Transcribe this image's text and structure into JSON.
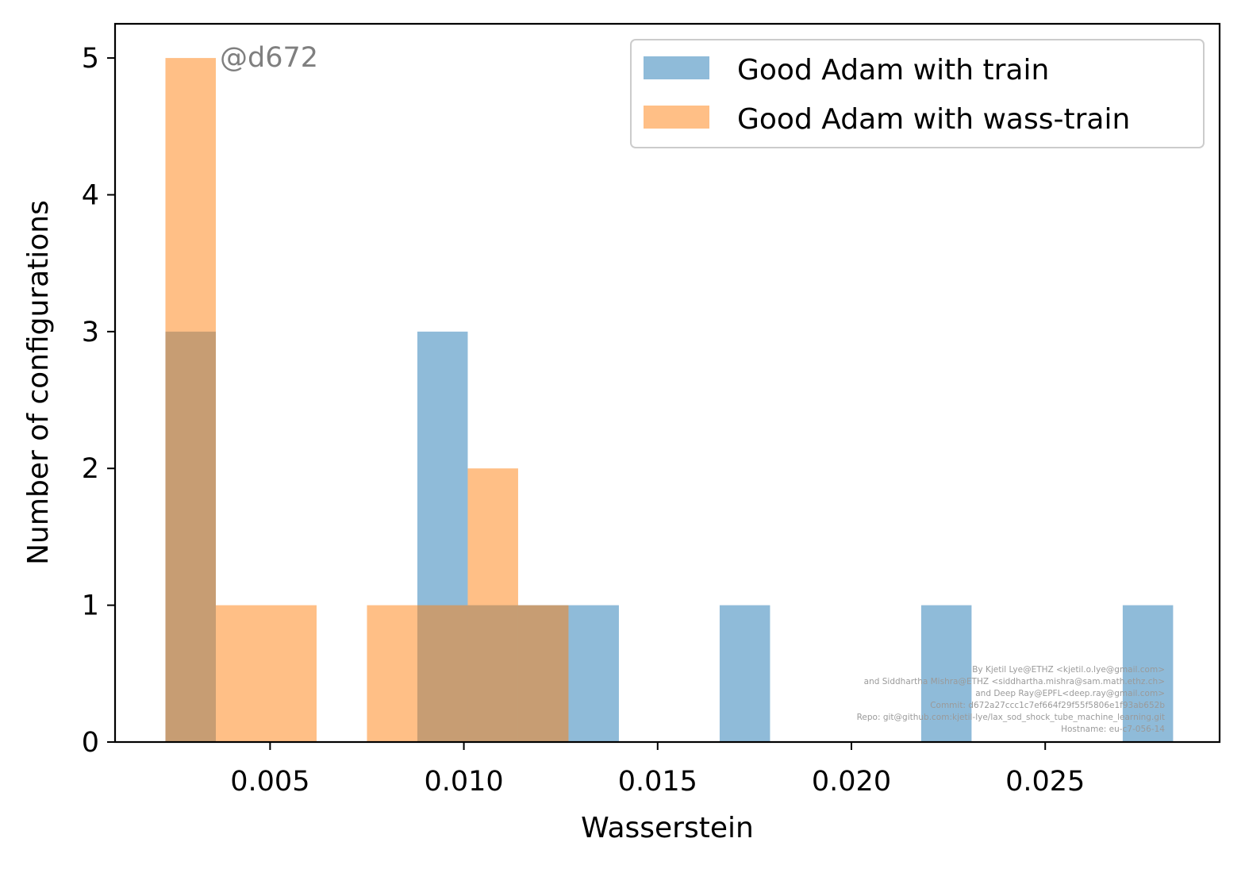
{
  "chart_data": {
    "type": "bar",
    "xlabel": "Wasserstein",
    "ylabel": "Number of configurations",
    "xlim": [
      0.001,
      0.0295
    ],
    "ylim": [
      0,
      5.25
    ],
    "x_ticks": [
      0.005,
      0.01,
      0.015,
      0.02,
      0.025
    ],
    "x_tick_labels": [
      "0.005",
      "0.010",
      "0.015",
      "0.020",
      "0.025"
    ],
    "y_ticks": [
      0,
      1,
      2,
      3,
      4,
      5
    ],
    "y_tick_labels": [
      "0",
      "1",
      "2",
      "3",
      "4",
      "5"
    ],
    "grid": false,
    "legend_position": "top-right",
    "series": [
      {
        "name": "Good Adam with train",
        "color": "#1f77b4",
        "opacity": 0.5,
        "bins": [
          {
            "x0": 0.0023,
            "x1": 0.0036,
            "count": 3
          },
          {
            "x0": 0.0088,
            "x1": 0.0101,
            "count": 3
          },
          {
            "x0": 0.0101,
            "x1": 0.0114,
            "count": 1
          },
          {
            "x0": 0.0114,
            "x1": 0.0127,
            "count": 1
          },
          {
            "x0": 0.0127,
            "x1": 0.014,
            "count": 1
          },
          {
            "x0": 0.0166,
            "x1": 0.0179,
            "count": 1
          },
          {
            "x0": 0.0218,
            "x1": 0.0231,
            "count": 1
          },
          {
            "x0": 0.027,
            "x1": 0.0283,
            "count": 1
          }
        ]
      },
      {
        "name": "Good Adam with wass-train",
        "color": "#ff7f0e",
        "opacity": 0.5,
        "bins": [
          {
            "x0": 0.0023,
            "x1": 0.0036,
            "count": 5
          },
          {
            "x0": 0.0036,
            "x1": 0.0049,
            "count": 1
          },
          {
            "x0": 0.0049,
            "x1": 0.0062,
            "count": 1
          },
          {
            "x0": 0.0075,
            "x1": 0.0088,
            "count": 1
          },
          {
            "x0": 0.0088,
            "x1": 0.0101,
            "count": 1
          },
          {
            "x0": 0.0101,
            "x1": 0.0114,
            "count": 2
          },
          {
            "x0": 0.0114,
            "x1": 0.0127,
            "count": 1
          }
        ]
      }
    ]
  },
  "annotation": "@d672",
  "credits": [
    "By Kjetil Lye@ETHZ <kjetil.o.lye@gmail.com>",
    "and Siddhartha Mishra@ETHZ <siddhartha.mishra@sam.math.ethz.ch>",
    "and Deep Ray@EPFL<deep.ray@gmail.com>",
    "Commit: d672a27ccc1c7ef664f29f55f5806e1f93ab652b",
    "Repo: git@github.com:kjetil-lye/lax_sod_shock_tube_machine_learning.git",
    "Hostname: eu-c7-056-14"
  ]
}
